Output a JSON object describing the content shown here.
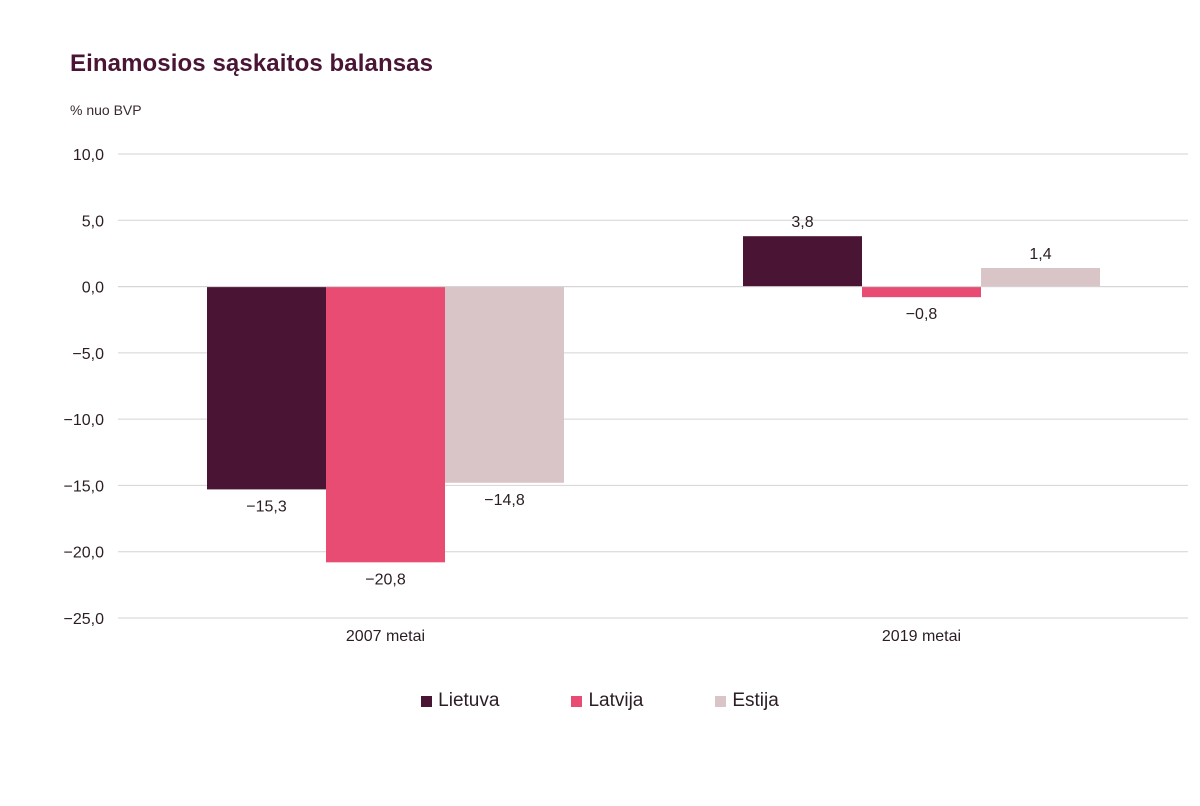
{
  "chart_data": {
    "type": "bar",
    "title": "Einamosios sąskaitos balansas",
    "ylabel": "% nuo BVP",
    "categories": [
      "2007 metai",
      "2019 metai"
    ],
    "series": [
      {
        "name": "Lietuva",
        "values": [
          -15.3,
          3.8
        ],
        "labels": [
          "−15,3",
          "3,8"
        ],
        "color": "#4a1535"
      },
      {
        "name": "Latvija",
        "values": [
          -20.8,
          -0.8
        ],
        "labels": [
          "−20,8",
          "−0,8"
        ],
        "color": "#e84c72"
      },
      {
        "name": "Estija",
        "values": [
          -14.8,
          1.4
        ],
        "labels": [
          "−14,8",
          "1,4"
        ],
        "color": "#d9c5c8"
      }
    ],
    "ylim": [
      -25,
      10
    ],
    "yticks": [
      10,
      5,
      0,
      -5,
      -10,
      -15,
      -20,
      -25
    ],
    "ytick_labels": [
      "10,0",
      "5,0",
      "0,0",
      "−5,0",
      "−10,0",
      "−15,0",
      "−20,0",
      "−25,0"
    ],
    "grid": true,
    "legend_position": "bottom"
  }
}
